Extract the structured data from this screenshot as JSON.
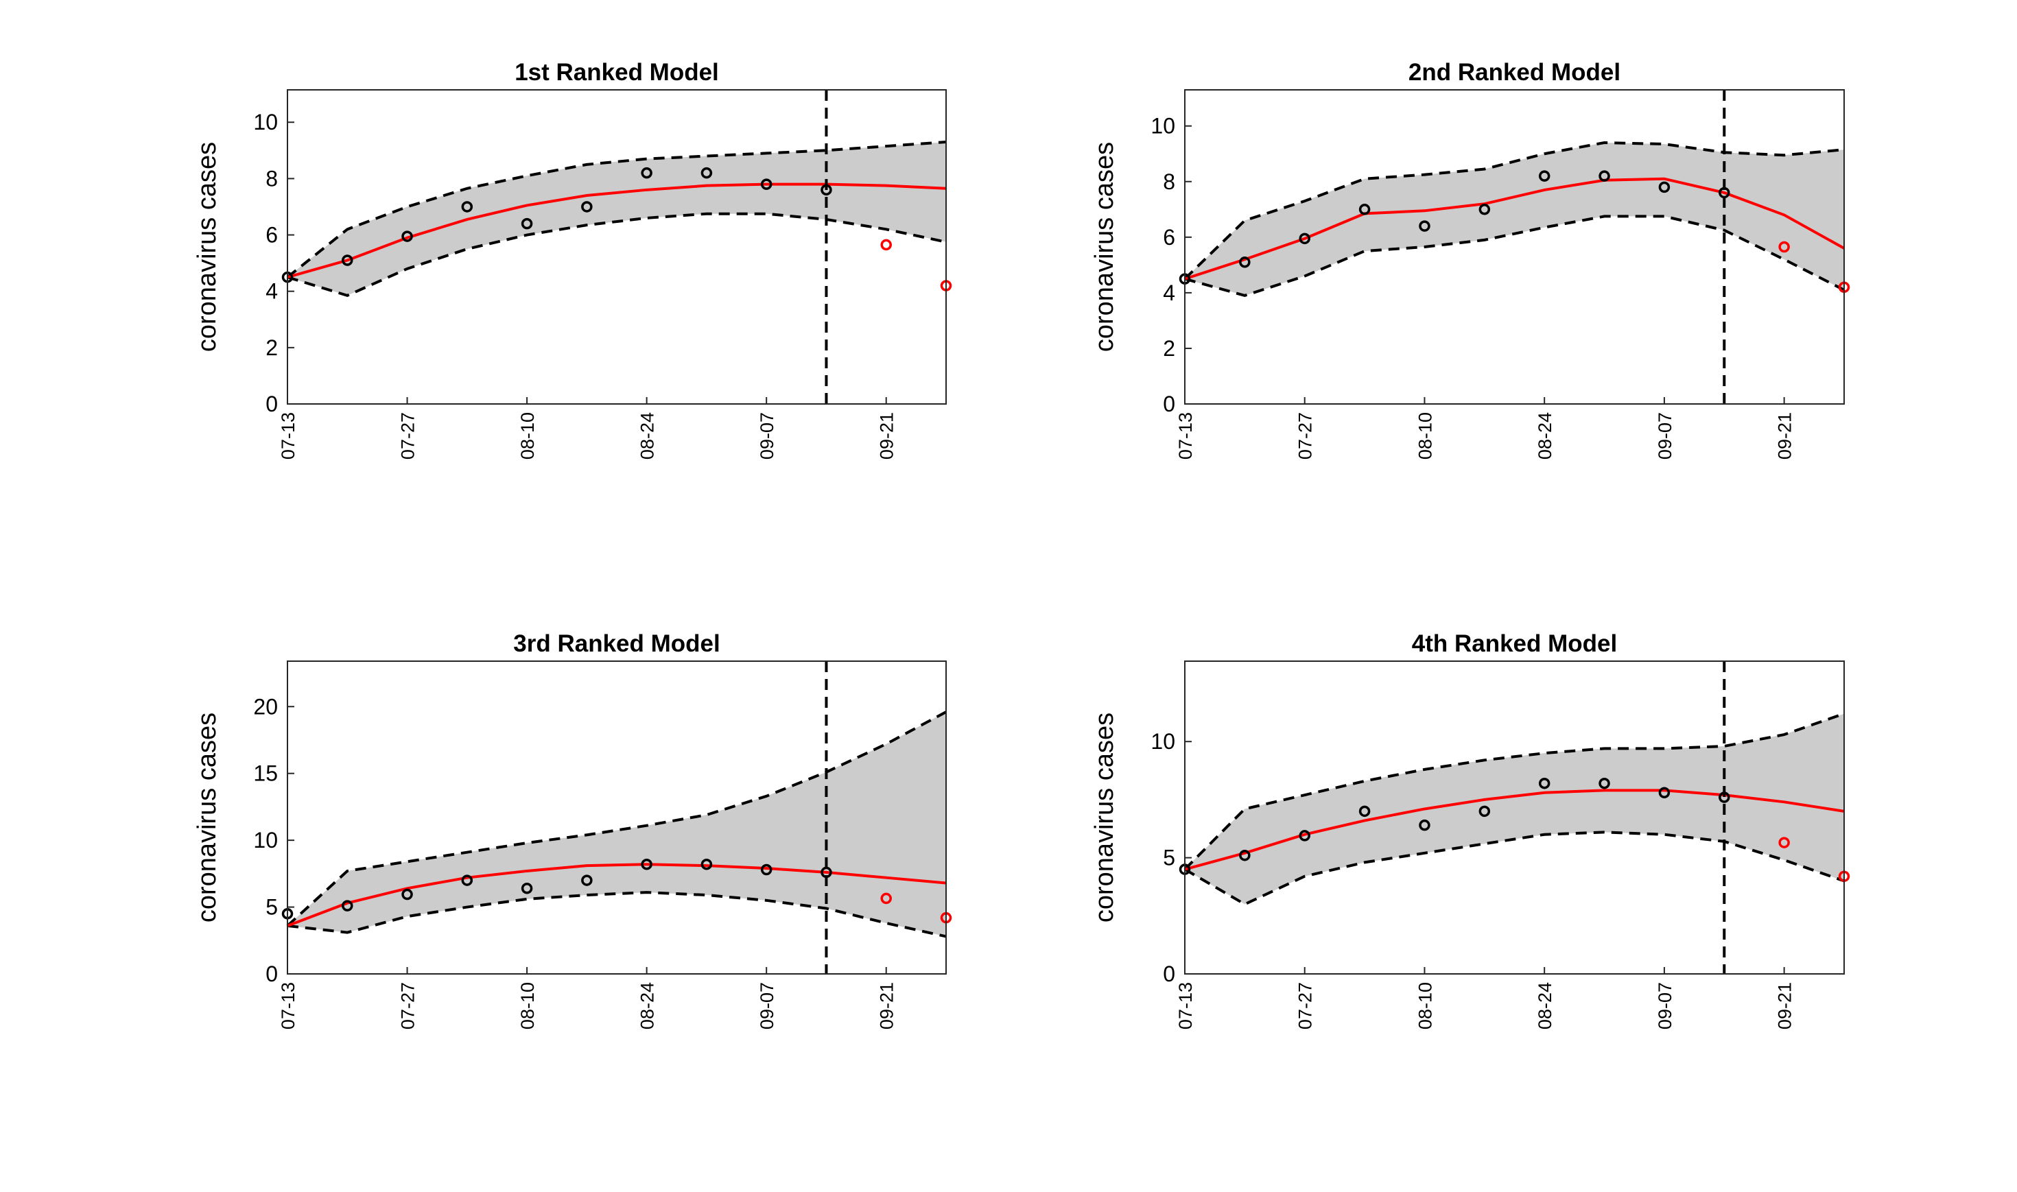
{
  "charts": [
    {
      "type": "line",
      "title": "1st Ranked Model",
      "ylabel": "coronavirus cases",
      "categories": [
        "07-13",
        null,
        "07-27",
        null,
        "08-10",
        null,
        "08-24",
        null,
        "09-07",
        null,
        "09-21",
        null
      ],
      "xlim": [
        0,
        11
      ],
      "ylim": [
        0,
        11.15
      ],
      "yticks": [
        0,
        2,
        4,
        6,
        8,
        10
      ],
      "forecast_start": 9,
      "band_color": "#cccccc",
      "mean": {
        "color": "#ff0000",
        "values": [
          4.5,
          5.1,
          5.9,
          6.55,
          7.05,
          7.4,
          7.6,
          7.75,
          7.8,
          7.8,
          7.75,
          7.65
        ]
      },
      "upper": [
        4.5,
        6.2,
        7.0,
        7.65,
        8.1,
        8.5,
        8.7,
        8.8,
        8.9,
        9.0,
        9.15,
        9.3
      ],
      "lower": [
        4.5,
        3.85,
        4.8,
        5.5,
        6.0,
        6.35,
        6.6,
        6.75,
        6.75,
        6.55,
        6.2,
        5.75
      ],
      "observed": {
        "color": "#000000",
        "values": [
          4.5,
          5.1,
          5.95,
          7.0,
          6.4,
          7.0,
          8.2,
          8.2,
          7.8,
          7.6,
          null,
          null
        ]
      },
      "held_out": {
        "color": "#ff0000",
        "values": [
          null,
          null,
          null,
          null,
          null,
          null,
          null,
          null,
          null,
          null,
          5.65,
          4.2
        ]
      }
    },
    {
      "type": "line",
      "title": "2nd Ranked Model",
      "ylabel": "coronavirus cases",
      "categories": [
        "07-13",
        null,
        "07-27",
        null,
        "08-10",
        null,
        "08-24",
        null,
        "09-07",
        null,
        "09-21",
        null
      ],
      "xlim": [
        0,
        11
      ],
      "ylim": [
        0,
        11.3
      ],
      "yticks": [
        0,
        2,
        4,
        6,
        8,
        10
      ],
      "forecast_start": 9,
      "band_color": "#cccccc",
      "mean": {
        "color": "#ff0000",
        "values": [
          4.5,
          5.2,
          5.95,
          6.85,
          6.95,
          7.2,
          7.7,
          8.05,
          8.1,
          7.6,
          6.8,
          5.6
        ]
      },
      "upper": [
        4.5,
        6.6,
        7.3,
        8.1,
        8.25,
        8.45,
        9.0,
        9.4,
        9.35,
        9.05,
        8.95,
        9.15
      ],
      "lower": [
        4.5,
        3.9,
        4.6,
        5.5,
        5.65,
        5.9,
        6.35,
        6.75,
        6.75,
        6.25,
        5.2,
        4.1
      ],
      "observed": {
        "color": "#000000",
        "values": [
          4.5,
          5.1,
          5.95,
          7.0,
          6.4,
          7.0,
          8.2,
          8.2,
          7.8,
          7.6,
          null,
          null
        ]
      },
      "held_out": {
        "color": "#ff0000",
        "values": [
          null,
          null,
          null,
          null,
          null,
          null,
          null,
          null,
          null,
          null,
          5.65,
          4.2
        ]
      }
    },
    {
      "type": "line",
      "title": "3rd Ranked Model",
      "ylabel": "coronavirus cases",
      "categories": [
        "07-13",
        null,
        "07-27",
        null,
        "08-10",
        null,
        "08-24",
        null,
        "09-07",
        null,
        "09-21",
        null
      ],
      "xlim": [
        0,
        11
      ],
      "ylim": [
        0,
        23.4
      ],
      "yticks": [
        0,
        5,
        10,
        15,
        20
      ],
      "forecast_start": 9,
      "band_color": "#cccccc",
      "mean": {
        "color": "#ff0000",
        "values": [
          3.6,
          5.3,
          6.4,
          7.2,
          7.7,
          8.1,
          8.2,
          8.1,
          7.9,
          7.6,
          7.2,
          6.8
        ]
      },
      "upper": [
        3.6,
        7.7,
        8.4,
        9.1,
        9.8,
        10.4,
        11.1,
        11.9,
        13.3,
        15.1,
        17.2,
        19.6
      ],
      "lower": [
        3.6,
        3.1,
        4.3,
        5.0,
        5.6,
        5.9,
        6.1,
        5.9,
        5.5,
        4.9,
        3.8,
        2.8
      ],
      "observed": {
        "color": "#000000",
        "values": [
          4.5,
          5.1,
          5.95,
          7.0,
          6.4,
          7.0,
          8.2,
          8.2,
          7.8,
          7.6,
          null,
          null
        ]
      },
      "held_out": {
        "color": "#ff0000",
        "values": [
          null,
          null,
          null,
          null,
          null,
          null,
          null,
          null,
          null,
          null,
          5.65,
          4.2
        ]
      }
    },
    {
      "type": "line",
      "title": "4th Ranked Model",
      "ylabel": "coronavirus cases",
      "categories": [
        "07-13",
        null,
        "07-27",
        null,
        "08-10",
        null,
        "08-24",
        null,
        "09-07",
        null,
        "09-21",
        null
      ],
      "xlim": [
        0,
        11
      ],
      "ylim": [
        0,
        13.46
      ],
      "yticks": [
        0,
        5,
        10
      ],
      "forecast_start": 9,
      "band_color": "#cccccc",
      "mean": {
        "color": "#ff0000",
        "values": [
          4.5,
          5.2,
          6.0,
          6.6,
          7.1,
          7.5,
          7.8,
          7.9,
          7.9,
          7.7,
          7.4,
          7.0
        ]
      },
      "upper": [
        4.5,
        7.1,
        7.7,
        8.3,
        8.8,
        9.2,
        9.5,
        9.7,
        9.7,
        9.8,
        10.3,
        11.2
      ],
      "lower": [
        4.5,
        3.0,
        4.2,
        4.8,
        5.2,
        5.6,
        6.0,
        6.1,
        6.0,
        5.7,
        4.9,
        4.0
      ],
      "observed": {
        "color": "#000000",
        "values": [
          4.5,
          5.1,
          5.95,
          7.0,
          6.4,
          7.0,
          8.2,
          8.2,
          7.8,
          7.6,
          null,
          null
        ]
      },
      "held_out": {
        "color": "#ff0000",
        "values": [
          null,
          null,
          null,
          null,
          null,
          null,
          null,
          null,
          null,
          null,
          5.65,
          4.2
        ]
      }
    }
  ]
}
